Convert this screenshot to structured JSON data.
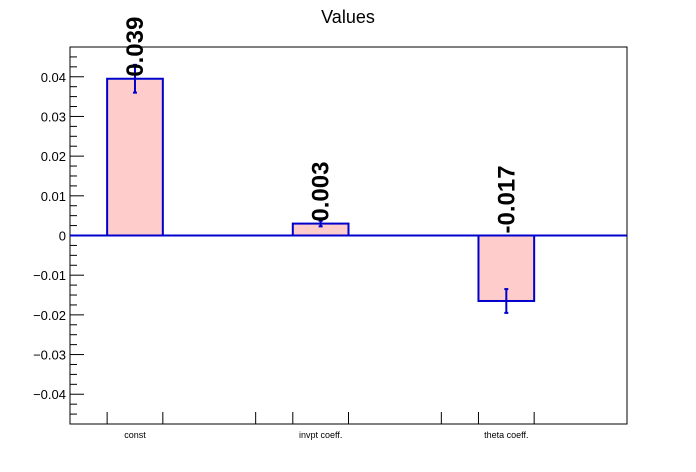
{
  "chart_data": {
    "type": "bar",
    "title": "Values",
    "categories": [
      "const",
      "invpt coeff.",
      "theta coeff."
    ],
    "values": [
      0.0395,
      0.003,
      -0.0165
    ],
    "errors": [
      0.0035,
      0.0007,
      0.003
    ],
    "data_labels": [
      "0.039",
      "0.003",
      "-0.017"
    ],
    "ylim": [
      -0.0475,
      0.0475
    ],
    "yticks": [
      -0.04,
      -0.03,
      -0.02,
      -0.01,
      0,
      0.01,
      0.02,
      0.03,
      0.04
    ],
    "ytick_labels": [
      "−0.04",
      "−0.03",
      "−0.02",
      "−0.01",
      "0",
      "0.01",
      "0.02",
      "0.03",
      "0.04"
    ],
    "xlabel": "",
    "ylabel": "",
    "grid": false,
    "colors": {
      "bar_fill": "#ffcccc",
      "bar_stroke": "#0000cc",
      "zero_line": "#0000cc",
      "axis": "#000000"
    }
  }
}
